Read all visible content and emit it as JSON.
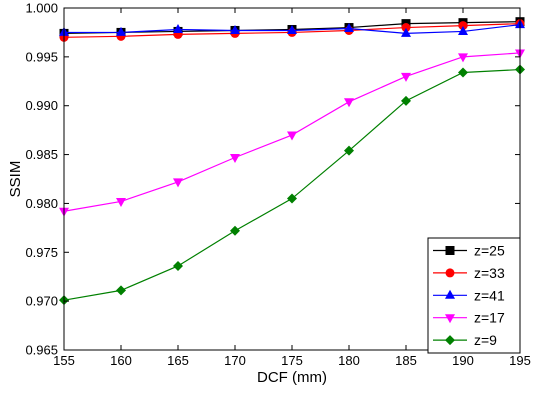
{
  "chart_data": {
    "type": "line",
    "title": "",
    "xlabel": "DCF (mm)",
    "ylabel": "SSIM",
    "xlim": [
      155,
      195
    ],
    "ylim": [
      0.965,
      1.0
    ],
    "xticks": [
      "155",
      "160",
      "165",
      "170",
      "175",
      "180",
      "185",
      "190",
      "195"
    ],
    "yticks": [
      "0.965",
      "0.970",
      "0.975",
      "0.980",
      "0.985",
      "0.990",
      "0.995",
      "1.000"
    ],
    "x": [
      155,
      160,
      165,
      170,
      175,
      180,
      185,
      190,
      195
    ],
    "grid": false,
    "legend_position": "bottom-right",
    "series": [
      {
        "name": "z=25",
        "color": "#000000",
        "marker": "square",
        "values": [
          0.9974,
          0.9975,
          0.9976,
          0.9977,
          0.9978,
          0.998,
          0.9984,
          0.9985,
          0.9986
        ]
      },
      {
        "name": "z=33",
        "color": "#ff0000",
        "marker": "circle",
        "values": [
          0.997,
          0.9971,
          0.9973,
          0.9974,
          0.9975,
          0.9977,
          0.998,
          0.9982,
          0.9984
        ]
      },
      {
        "name": "z=41",
        "color": "#0000ff",
        "marker": "triangle-up",
        "values": [
          0.9975,
          0.9975,
          0.9978,
          0.9977,
          0.9977,
          0.9979,
          0.9974,
          0.9976,
          0.9983
        ]
      },
      {
        "name": "z=17",
        "color": "#ff00ff",
        "marker": "triangle-down",
        "values": [
          0.9792,
          0.9802,
          0.9822,
          0.9847,
          0.987,
          0.9904,
          0.993,
          0.995,
          0.9954
        ]
      },
      {
        "name": "z=9",
        "color": "#008000",
        "marker": "diamond",
        "values": [
          0.9701,
          0.9711,
          0.9736,
          0.9772,
          0.9805,
          0.9854,
          0.9905,
          0.9934,
          0.9937
        ]
      }
    ]
  }
}
